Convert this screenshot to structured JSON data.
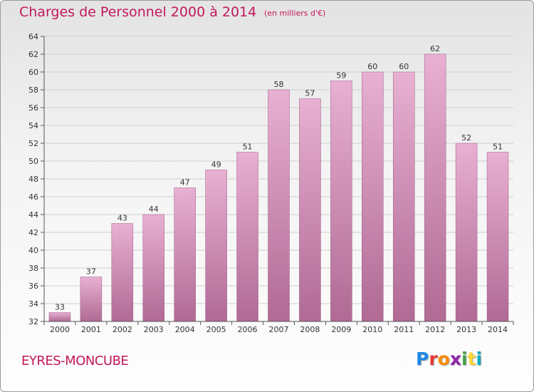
{
  "header": {
    "title": "Charges de Personnel 2000 à 2014",
    "subtitle": "(en milliers d'€)"
  },
  "footer": {
    "commune": "EYRES-MONCUBE",
    "logo_text": "Proxiti",
    "logo_letters": [
      "P",
      "r",
      "o",
      "x",
      "i",
      "t",
      "i"
    ],
    "logo_colors": [
      "#1e88e5",
      "#e53935",
      "#fb8c00",
      "#8e24aa",
      "#43a047",
      "#fdd835",
      "#00acc1"
    ]
  },
  "colors": {
    "bar_top": "#e8b0d2",
    "bar_bottom": "#b06a94",
    "bar_stroke": "#9e5c85",
    "axis": "#555555",
    "grid": "#cfcfcf",
    "title": "#c2185b"
  },
  "chart_data": {
    "type": "bar",
    "categories": [
      "2000",
      "2001",
      "2002",
      "2003",
      "2004",
      "2005",
      "2006",
      "2007",
      "2008",
      "2009",
      "2010",
      "2011",
      "2012",
      "2013",
      "2014"
    ],
    "values": [
      33,
      37,
      43,
      44,
      47,
      49,
      51,
      58,
      57,
      59,
      60,
      60,
      62,
      52,
      51
    ],
    "data_labels": [
      "33",
      "37",
      "43",
      "44",
      "47",
      "49",
      "51",
      "58",
      "57",
      "59",
      "60",
      "60",
      "62",
      "52",
      "51"
    ],
    "title": "Charges de Personnel 2000 à 2014",
    "subtitle": "(en milliers d'€)",
    "ylim": [
      32,
      64
    ],
    "yticks": [
      32,
      34,
      36,
      38,
      40,
      42,
      44,
      46,
      48,
      50,
      52,
      54,
      56,
      58,
      60,
      62,
      64
    ],
    "ytick_labels": [
      "32",
      "34",
      "36",
      "38",
      "40",
      "42",
      "44",
      "46",
      "48",
      "50",
      "52",
      "54",
      "56",
      "58",
      "60",
      "62",
      "64"
    ],
    "grid": true,
    "legend": "none"
  }
}
